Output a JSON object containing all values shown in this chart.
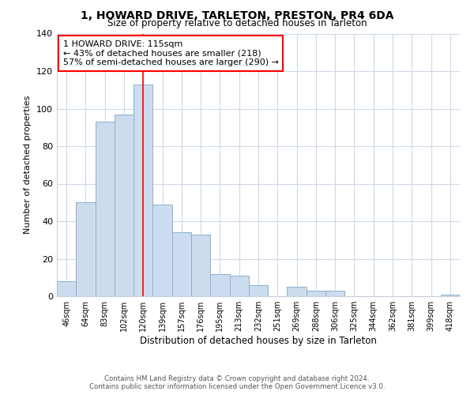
{
  "title": "1, HOWARD DRIVE, TARLETON, PRESTON, PR4 6DA",
  "subtitle": "Size of property relative to detached houses in Tarleton",
  "xlabel": "Distribution of detached houses by size in Tarleton",
  "ylabel": "Number of detached properties",
  "bar_labels": [
    "46sqm",
    "64sqm",
    "83sqm",
    "102sqm",
    "120sqm",
    "139sqm",
    "157sqm",
    "176sqm",
    "195sqm",
    "213sqm",
    "232sqm",
    "251sqm",
    "269sqm",
    "288sqm",
    "306sqm",
    "325sqm",
    "344sqm",
    "362sqm",
    "381sqm",
    "399sqm",
    "418sqm"
  ],
  "bar_values": [
    8,
    50,
    93,
    97,
    113,
    49,
    34,
    33,
    12,
    11,
    6,
    0,
    5,
    3,
    3,
    0,
    0,
    0,
    0,
    0,
    1
  ],
  "bar_color": "#ccdcee",
  "bar_edge_color": "#8ab0cc",
  "ylim": [
    0,
    140
  ],
  "yticks": [
    0,
    20,
    40,
    60,
    80,
    100,
    120,
    140
  ],
  "redline_x": 4,
  "annotation_title": "1 HOWARD DRIVE: 115sqm",
  "annotation_line1": "← 43% of detached houses are smaller (218)",
  "annotation_line2": "57% of semi-detached houses are larger (290) →",
  "footer1": "Contains HM Land Registry data © Crown copyright and database right 2024.",
  "footer2": "Contains public sector information licensed under the Open Government Licence v3.0.",
  "plot_background": "#ffffff",
  "grid_color": "#ccd8e8"
}
